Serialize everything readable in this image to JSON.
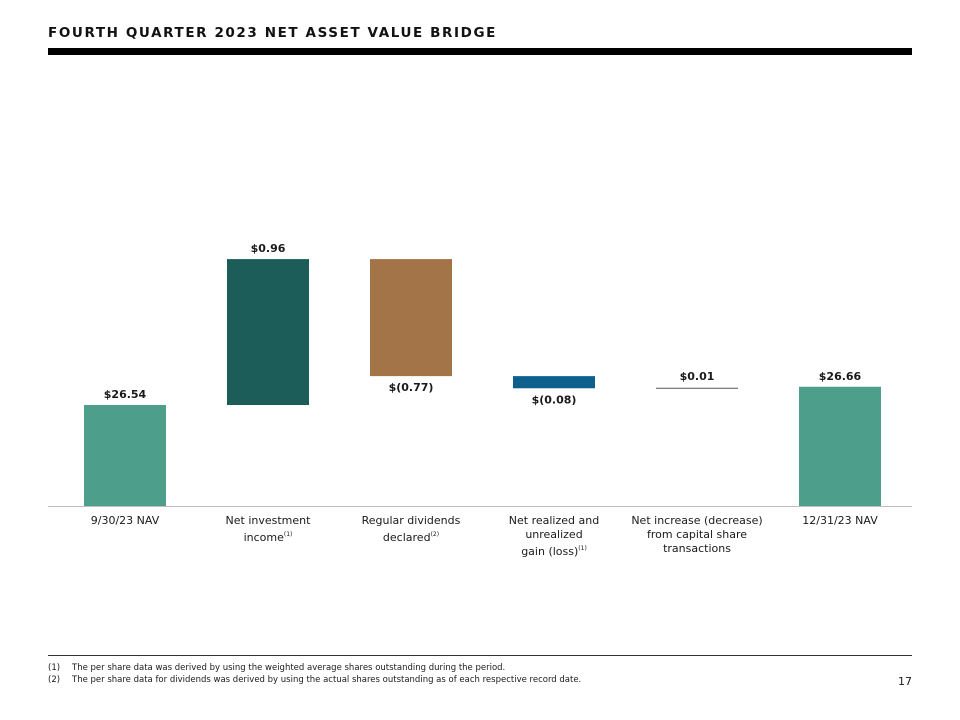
{
  "title": "FOURTH QUARTER 2023 NET ASSET VALUE BRIDGE",
  "chart_data": {
    "type": "bar",
    "subtype": "waterfall",
    "categories": [
      {
        "line1": "9/30/23 NAV",
        "line2": "",
        "note": ""
      },
      {
        "line1": "Net investment",
        "line2": "income",
        "note": "(1)"
      },
      {
        "line1": "Regular dividends",
        "line2": "declared",
        "note": "(2)"
      },
      {
        "line1": "Net realized and unrealized",
        "line2": "gain (loss)",
        "note": "(1)"
      },
      {
        "line1": "Net increase (decrease)",
        "line2": "from capital share",
        "line3": "transactions",
        "note": ""
      },
      {
        "line1": "12/31/23 NAV",
        "line2": "",
        "note": ""
      }
    ],
    "values": [
      26.54,
      0.96,
      -0.77,
      -0.08,
      0.01,
      26.66
    ],
    "bar_kind": [
      "total",
      "delta",
      "delta",
      "delta",
      "delta",
      "total"
    ],
    "data_labels": [
      "$26.54",
      "$0.96",
      "$(0.77)",
      "$(0.08)",
      "$0.01",
      "$26.66"
    ],
    "colors": [
      "#4e9e8c",
      "#1c5d59",
      "#a47449",
      "#0d5f8c",
      "#555555",
      "#4e9e8c"
    ],
    "ylim_note": "axis origin is not zero; totals are drawn on a truncated scale",
    "grid": false,
    "legend": "none"
  },
  "footnotes": [
    {
      "mark": "(1)",
      "text": "The per share data was derived by using the weighted average shares outstanding during the period."
    },
    {
      "mark": "(2)",
      "text": "The per share data for dividends was derived by using the actual shares outstanding as of each respective record date."
    }
  ],
  "page_number": "17"
}
